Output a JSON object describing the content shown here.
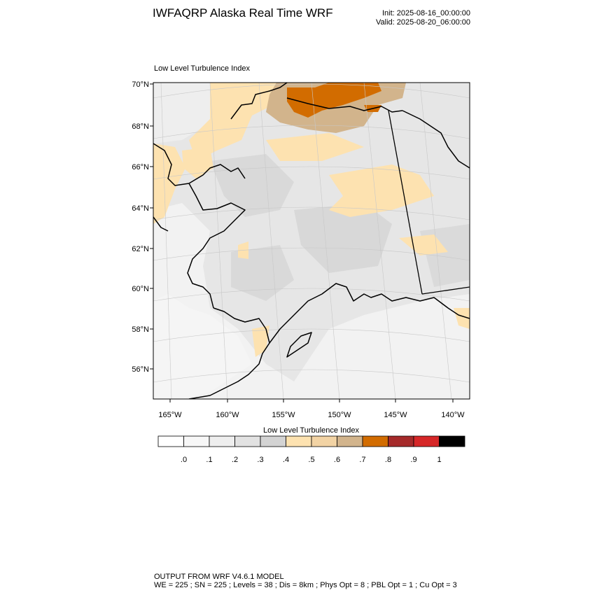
{
  "header": {
    "title": "IWFAQRP Alaska Real Time WRF",
    "init": "Init: 2025-08-16_00:00:00",
    "valid": "Valid: 2025-08-20_06:00:00"
  },
  "map": {
    "field_title": "Low Level Turbulence Index",
    "lat_labels": [
      "70°N",
      "68°N",
      "66°N",
      "64°N",
      "62°N",
      "60°N",
      "58°N",
      "56°N"
    ],
    "lon_labels": [
      "165°W",
      "160°W",
      "155°W",
      "150°W",
      "145°W",
      "140°W"
    ]
  },
  "legend": {
    "title": "Low Level Turbulence Index",
    "labels": [
      ".0",
      ".1",
      ".2",
      ".3",
      ".4",
      ".5",
      ".6",
      ".7",
      ".8",
      ".9",
      "1"
    ],
    "colors": [
      "#ffffff",
      "#f7f7f7",
      "#eeeeee",
      "#e2e2e2",
      "#d3d3d3",
      "#fde2b0",
      "#f2d3a4",
      "#d2b48c",
      "#d26c00",
      "#a52a2a",
      "#d62728",
      "#000000"
    ]
  },
  "footer": {
    "line1": "OUTPUT FROM WRF V4.6.1 MODEL",
    "line2": "WE = 225 ; SN = 225 ; Levels = 38 ; Dis = 8km ; Phys Opt = 8 ; PBL Opt = 1 ; Cu Opt = 3"
  }
}
